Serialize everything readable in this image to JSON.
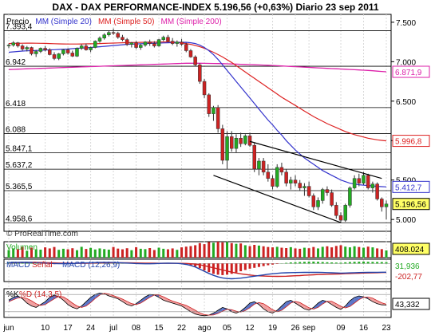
{
  "chart_data": {
    "type": "candlestick",
    "title": "DAX - DAX PERFORMANCE-INDEX   5.196,56 (+0,63%)   Diario  23 sep 2011",
    "source": "© ProRealTime.com",
    "legend": [
      {
        "text": "Precio",
        "color": "#000000"
      },
      {
        "text": "MM (Simple 20)",
        "color": "#3333cc"
      },
      {
        "text": "MM (Simple 50)",
        "color": "#dd2222"
      },
      {
        "text": "MM (Simple 200)",
        "color": "#dd22aa"
      }
    ],
    "price_ylim": [
      4850,
      7600
    ],
    "price_ticks": [
      {
        "label": "7.500",
        "value": 7500
      },
      {
        "label": "7.000",
        "value": 7000
      },
      {
        "label": "6.500",
        "value": 6500
      },
      {
        "label": "6.000",
        "value": 6000
      },
      {
        "label": "5.500",
        "value": 5500
      },
      {
        "label": "5.000",
        "value": 5000
      }
    ],
    "levels": [
      {
        "label": "7.393,4",
        "value": 7393.4
      },
      {
        "label": "6.942",
        "value": 6942
      },
      {
        "label": "6.418",
        "value": 6418
      },
      {
        "label": "6.088",
        "value": 6088
      },
      {
        "label": "5.847,1",
        "value": 5847.1
      },
      {
        "label": "5.637,2",
        "value": 5637.2
      },
      {
        "label": "5.365,5",
        "value": 5365.5
      },
      {
        "label": "4.958,6",
        "value": 4958.6
      }
    ],
    "value_tags": [
      {
        "label": "6.871,9",
        "value": 6871.9,
        "color": "#dd22aa",
        "fill": "#ffffff"
      },
      {
        "label": "5.996,8",
        "value": 5996.8,
        "color": "#dd2222",
        "fill": "#ffffff"
      },
      {
        "label": "5.412,7",
        "value": 5412.7,
        "color": "#3333cc",
        "fill": "#ffffff"
      },
      {
        "label": "5.196,56",
        "value": 5196.56,
        "color": "#000000",
        "fill": "#ffff66"
      }
    ],
    "x_ticks": [
      {
        "label": "jun",
        "index": 0
      },
      {
        "label": "10",
        "index": 8
      },
      {
        "label": "17",
        "index": 13
      },
      {
        "label": "24",
        "index": 18
      },
      {
        "label": "jul",
        "index": 23
      },
      {
        "label": "08",
        "index": 28
      },
      {
        "label": "15",
        "index": 33
      },
      {
        "label": "22",
        "index": 38
      },
      {
        "label": "ago",
        "index": 43
      },
      {
        "label": "05",
        "index": 48
      },
      {
        "label": "12",
        "index": 53
      },
      {
        "label": "19",
        "index": 58
      },
      {
        "label": "26",
        "index": 63
      },
      {
        "label": "sep",
        "index": 66
      },
      {
        "label": "09",
        "index": 73
      },
      {
        "label": "16",
        "index": 78
      },
      {
        "label": "23",
        "index": 83
      }
    ],
    "candles": [
      [
        7200,
        7230,
        7170,
        7210
      ],
      [
        7210,
        7260,
        7190,
        7240
      ],
      [
        7240,
        7250,
        7180,
        7200
      ],
      [
        7200,
        7220,
        7140,
        7160
      ],
      [
        7160,
        7200,
        7130,
        7180
      ],
      [
        7180,
        7190,
        7080,
        7100
      ],
      [
        7100,
        7150,
        7060,
        7130
      ],
      [
        7130,
        7180,
        7110,
        7170
      ],
      [
        7170,
        7200,
        7130,
        7150
      ],
      [
        7150,
        7170,
        7080,
        7090
      ],
      [
        7090,
        7120,
        7020,
        7040
      ],
      [
        7040,
        7110,
        7020,
        7100
      ],
      [
        7100,
        7160,
        7080,
        7150
      ],
      [
        7150,
        7170,
        7090,
        7110
      ],
      [
        7110,
        7140,
        7060,
        7070
      ],
      [
        7070,
        7180,
        7060,
        7170
      ],
      [
        7170,
        7220,
        7150,
        7200
      ],
      [
        7200,
        7230,
        7140,
        7150
      ],
      [
        7150,
        7190,
        7120,
        7180
      ],
      [
        7180,
        7270,
        7170,
        7260
      ],
      [
        7260,
        7320,
        7240,
        7300
      ],
      [
        7300,
        7360,
        7280,
        7340
      ],
      [
        7340,
        7390,
        7320,
        7370
      ],
      [
        7370,
        7420,
        7340,
        7360
      ],
      [
        7360,
        7380,
        7290,
        7310
      ],
      [
        7310,
        7340,
        7260,
        7280
      ],
      [
        7280,
        7300,
        7200,
        7220
      ],
      [
        7220,
        7250,
        7180,
        7240
      ],
      [
        7240,
        7260,
        7160,
        7180
      ],
      [
        7180,
        7230,
        7150,
        7210
      ],
      [
        7210,
        7260,
        7190,
        7250
      ],
      [
        7250,
        7280,
        7200,
        7230
      ],
      [
        7230,
        7260,
        7180,
        7200
      ],
      [
        7200,
        7290,
        7190,
        7280
      ],
      [
        7280,
        7330,
        7260,
        7310
      ],
      [
        7310,
        7340,
        7250,
        7260
      ],
      [
        7260,
        7300,
        7210,
        7230
      ],
      [
        7230,
        7270,
        7190,
        7250
      ],
      [
        7250,
        7290,
        7200,
        7220
      ],
      [
        7220,
        7240,
        7120,
        7140
      ],
      [
        7140,
        7160,
        7050,
        7060
      ],
      [
        7060,
        7080,
        6940,
        6960
      ],
      [
        6960,
        6980,
        6720,
        6750
      ],
      [
        6750,
        6780,
        6540,
        6580
      ],
      [
        6580,
        6600,
        6300,
        6340
      ],
      [
        6340,
        6440,
        6250,
        6420
      ],
      [
        6420,
        6450,
        6100,
        6150
      ],
      [
        6150,
        6200,
        5700,
        5750
      ],
      [
        5750,
        6120,
        5640,
        6050
      ],
      [
        6050,
        6120,
        5860,
        5900
      ],
      [
        5900,
        6080,
        5850,
        6030
      ],
      [
        6030,
        6100,
        5920,
        5960
      ],
      [
        5960,
        6080,
        5940,
        6060
      ],
      [
        6060,
        6100,
        5920,
        5940
      ],
      [
        5940,
        5970,
        5600,
        5640
      ],
      [
        5640,
        5780,
        5560,
        5740
      ],
      [
        5740,
        5780,
        5560,
        5600
      ],
      [
        5600,
        5700,
        5480,
        5520
      ],
      [
        5520,
        5560,
        5380,
        5420
      ],
      [
        5420,
        5700,
        5400,
        5660
      ],
      [
        5660,
        5720,
        5560,
        5600
      ],
      [
        5600,
        5640,
        5420,
        5460
      ],
      [
        5460,
        5540,
        5380,
        5500
      ],
      [
        5500,
        5560,
        5420,
        5460
      ],
      [
        5460,
        5500,
        5360,
        5400
      ],
      [
        5400,
        5460,
        5300,
        5420
      ],
      [
        5420,
        5480,
        5280,
        5300
      ],
      [
        5300,
        5330,
        5120,
        5160
      ],
      [
        5160,
        5280,
        5120,
        5240
      ],
      [
        5240,
        5400,
        5200,
        5380
      ],
      [
        5380,
        5420,
        5300,
        5340
      ],
      [
        5340,
        5380,
        5160,
        5180
      ],
      [
        5180,
        5220,
        5010,
        5050
      ],
      [
        5050,
        5090,
        4960,
        4990
      ],
      [
        4990,
        5200,
        4970,
        5180
      ],
      [
        5180,
        5420,
        5150,
        5400
      ],
      [
        5400,
        5560,
        5380,
        5520
      ],
      [
        5520,
        5580,
        5420,
        5460
      ],
      [
        5460,
        5600,
        5440,
        5560
      ],
      [
        5560,
        5580,
        5380,
        5400
      ],
      [
        5400,
        5480,
        5340,
        5450
      ],
      [
        5450,
        5470,
        5240,
        5260
      ],
      [
        5260,
        5280,
        5100,
        5160
      ],
      [
        5160,
        5240,
        5000,
        5196.56
      ]
    ],
    "ma20": [
      7120,
      7125,
      7130,
      7135,
      7138,
      7140,
      7142,
      7145,
      7148,
      7150,
      7152,
      7155,
      7158,
      7160,
      7165,
      7170,
      7172,
      7175,
      7180,
      7185,
      7190,
      7195,
      7200,
      7205,
      7210,
      7215,
      7220,
      7222,
      7225,
      7228,
      7230,
      7232,
      7234,
      7236,
      7238,
      7240,
      7242,
      7244,
      7245,
      7246,
      7240,
      7230,
      7210,
      7180,
      7140,
      7090,
      7030,
      6960,
      6890,
      6820,
      6750,
      6680,
      6610,
      6540,
      6470,
      6400,
      6330,
      6260,
      6200,
      6130,
      6070,
      6000,
      5940,
      5880,
      5830,
      5780,
      5740,
      5700,
      5660,
      5620,
      5590,
      5560,
      5530,
      5500,
      5480,
      5460,
      5450,
      5440,
      5435,
      5430,
      5425,
      5420,
      5416,
      5412.7
    ],
    "ma50": [
      7230,
      7232,
      7233,
      7234,
      7235,
      7235,
      7234,
      7233,
      7232,
      7230,
      7228,
      7226,
      7225,
      7224,
      7224,
      7224,
      7225,
      7226,
      7227,
      7228,
      7230,
      7232,
      7234,
      7236,
      7238,
      7240,
      7242,
      7243,
      7244,
      7245,
      7246,
      7247,
      7248,
      7249,
      7250,
      7250,
      7248,
      7245,
      7240,
      7230,
      7220,
      7205,
      7190,
      7170,
      7145,
      7120,
      7090,
      7060,
      7025,
      6990,
      6950,
      6910,
      6870,
      6830,
      6790,
      6750,
      6710,
      6670,
      6630,
      6590,
      6550,
      6515,
      6480,
      6445,
      6410,
      6375,
      6340,
      6305,
      6275,
      6245,
      6215,
      6190,
      6165,
      6140,
      6115,
      6095,
      6075,
      6060,
      6045,
      6030,
      6020,
      6010,
      6003,
      5996.8
    ],
    "ma200": [
      6900,
      6902,
      6905,
      6907,
      6910,
      6912,
      6914,
      6916,
      6918,
      6920,
      6922,
      6924,
      6926,
      6928,
      6930,
      6932,
      6934,
      6936,
      6938,
      6940,
      6942,
      6944,
      6946,
      6948,
      6950,
      6952,
      6954,
      6956,
      6958,
      6960,
      6962,
      6964,
      6966,
      6968,
      6970,
      6972,
      6974,
      6976,
      6978,
      6980,
      6980,
      6980,
      6980,
      6979,
      6978,
      6977,
      6976,
      6975,
      6973,
      6971,
      6969,
      6967,
      6965,
      6963,
      6961,
      6959,
      6957,
      6955,
      6952,
      6949,
      6946,
      6943,
      6940,
      6937,
      6934,
      6931,
      6928,
      6925,
      6922,
      6919,
      6916,
      6913,
      6910,
      6907,
      6904,
      6901,
      6898,
      6895,
      6892,
      6889,
      6885,
      6880,
      6876,
      6871.9
    ],
    "channel_upper": {
      "from": [
        53,
        5990
      ],
      "to": [
        82,
        5520
      ]
    },
    "channel_lower": {
      "from": [
        45,
        5560
      ],
      "to": [
        73,
        4960
      ]
    },
    "volume": {
      "label": "Volumen",
      "last_label": "408.024",
      "max": 900000,
      "values": [
        430000,
        520000,
        480000,
        610000,
        390000,
        560000,
        470000,
        450000,
        580000,
        520000,
        600000,
        440000,
        500000,
        470000,
        530000,
        420000,
        610000,
        490000,
        550000,
        460000,
        520000,
        480000,
        450000,
        600000,
        510000,
        470000,
        530000,
        420000,
        590000,
        500000,
        480000,
        540000,
        430000,
        560000,
        500000,
        470000,
        520000,
        440000,
        580000,
        620000,
        650000,
        700000,
        820000,
        760000,
        880000,
        840000,
        900000,
        860000,
        880000,
        820000,
        780000,
        800000,
        700000,
        650000,
        720000,
        680000,
        640000,
        600000,
        580000,
        610000,
        560000,
        540000,
        590000,
        520000,
        500000,
        560000,
        530000,
        600000,
        520000,
        610000,
        640000,
        580000,
        660000,
        700000,
        620000,
        580000,
        640000,
        600000,
        560000,
        620000,
        580000,
        520000,
        480000,
        408024
      ]
    },
    "macd": {
      "label_a": "MACD",
      "label_b": "Señal",
      "label_c": "MACD (12,26,9)",
      "last_a": "31,936",
      "last_b": "-202,77",
      "ylim": [
        -420,
        100
      ],
      "hist": [
        30,
        40,
        35,
        30,
        25,
        20,
        10,
        5,
        -5,
        -10,
        -15,
        -10,
        -5,
        0,
        5,
        10,
        15,
        20,
        22,
        25,
        28,
        30,
        26,
        20,
        14,
        10,
        5,
        0,
        -5,
        -8,
        -10,
        -5,
        0,
        5,
        8,
        10,
        5,
        0,
        -10,
        -20,
        -40,
        -70,
        -110,
        -160,
        -200,
        -240,
        -260,
        -270,
        -260,
        -240,
        -210,
        -180,
        -150,
        -120,
        -100,
        -80,
        -60,
        -40,
        -25,
        -10,
        5,
        15,
        25,
        30,
        35,
        40,
        42,
        45,
        40,
        35,
        30,
        25,
        22,
        20,
        28,
        35,
        40,
        42,
        45,
        40,
        38,
        36,
        34,
        31.936
      ],
      "line": [
        20,
        25,
        28,
        30,
        28,
        25,
        20,
        15,
        10,
        5,
        0,
        -2,
        -4,
        -2,
        0,
        5,
        10,
        14,
        18,
        22,
        26,
        28,
        27,
        24,
        20,
        15,
        10,
        5,
        0,
        -4,
        -6,
        -5,
        -2,
        2,
        5,
        7,
        6,
        3,
        -5,
        -20,
        -45,
        -80,
        -130,
        -180,
        -230,
        -275,
        -310,
        -335,
        -350,
        -355,
        -350,
        -340,
        -325,
        -310,
        -295,
        -280,
        -265,
        -250,
        -238,
        -228,
        -220,
        -215,
        -212,
        -210,
        -208,
        -207,
        -206,
        -205,
        -206,
        -208,
        -212,
        -216,
        -220,
        -224,
        -222,
        -218,
        -214,
        -210,
        -208,
        -206,
        -205,
        -204,
        -203,
        -202.77
      ],
      "signal": [
        15,
        18,
        22,
        25,
        26,
        26,
        25,
        23,
        20,
        17,
        14,
        11,
        9,
        7,
        6,
        6,
        7,
        8,
        10,
        12,
        14,
        16,
        18,
        19,
        19,
        18,
        17,
        15,
        13,
        11,
        9,
        8,
        7,
        6,
        6,
        6,
        6,
        5,
        4,
        2,
        -5,
        -15,
        -30,
        -50,
        -75,
        -100,
        -125,
        -150,
        -175,
        -200,
        -222,
        -240,
        -255,
        -268,
        -278,
        -286,
        -292,
        -296,
        -298,
        -299,
        -298,
        -295,
        -290,
        -285,
        -280,
        -274,
        -268,
        -262,
        -257,
        -253,
        -250,
        -247,
        -244,
        -241,
        -237,
        -233,
        -229,
        -225,
        -222,
        -219,
        -216,
        -213,
        -210,
        -207
      ]
    },
    "stoch": {
      "label_a": "%K",
      "label_b": "%D (14,3,5)",
      "last_label": "43,332",
      "ylim": [
        0,
        100
      ],
      "k": [
        60,
        70,
        75,
        65,
        50,
        40,
        35,
        45,
        55,
        70,
        78,
        72,
        60,
        45,
        35,
        30,
        40,
        55,
        70,
        80,
        85,
        82,
        75,
        70,
        65,
        55,
        45,
        40,
        48,
        60,
        72,
        80,
        78,
        70,
        60,
        55,
        50,
        45,
        40,
        30,
        20,
        12,
        8,
        6,
        8,
        15,
        25,
        35,
        30,
        20,
        15,
        22,
        35,
        50,
        55,
        45,
        30,
        20,
        15,
        25,
        40,
        55,
        60,
        50,
        40,
        30,
        25,
        35,
        50,
        60,
        55,
        45,
        35,
        28,
        40,
        58,
        70,
        75,
        72,
        65,
        55,
        48,
        44,
        43.332
      ],
      "d": [
        55,
        62,
        68,
        70,
        66,
        58,
        48,
        42,
        45,
        55,
        65,
        73,
        72,
        62,
        50,
        40,
        35,
        40,
        52,
        66,
        78,
        84,
        82,
        76,
        70,
        64,
        56,
        48,
        45,
        50,
        60,
        70,
        78,
        78,
        72,
        64,
        57,
        52,
        47,
        42,
        34,
        25,
        16,
        10,
        8,
        9,
        14,
        22,
        28,
        27,
        22,
        19,
        24,
        34,
        46,
        52,
        48,
        38,
        27,
        20,
        25,
        37,
        50,
        56,
        52,
        43,
        34,
        29,
        35,
        47,
        56,
        56,
        48,
        39,
        33,
        38,
        50,
        62,
        70,
        71,
        67,
        59,
        51,
        46
      ]
    }
  }
}
